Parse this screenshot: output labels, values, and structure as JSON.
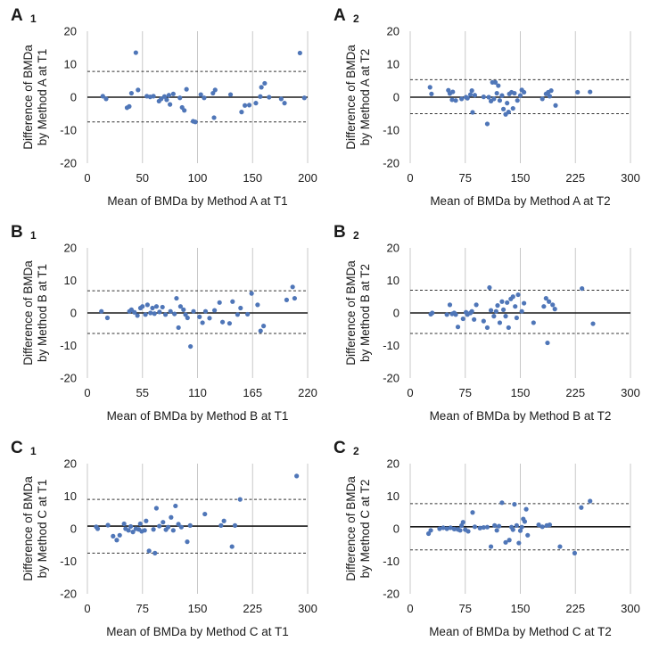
{
  "colors": {
    "point": "#4f76b8",
    "grid": "#c8c8c8",
    "axis": "#1a1a1a"
  },
  "chart_data": [
    {
      "id": "A1",
      "type": "scatter",
      "panel_letter": "A",
      "panel_number": "1",
      "xlabel": "Mean of BMDa by Method A at T1",
      "ylabel_line1": "Difference of BMDa",
      "ylabel_line2": "by Method A at T1",
      "xlim": [
        0,
        200
      ],
      "xticks": [
        0,
        50,
        100,
        150,
        200
      ],
      "ylim": [
        -20,
        20
      ],
      "yticks": [
        -20,
        -10,
        0,
        10,
        20
      ],
      "mean_diff": 0,
      "loa_upper": 7.8,
      "loa_lower": -7.5,
      "points": [
        [
          14,
          0.3
        ],
        [
          17,
          -0.5
        ],
        [
          36,
          -3.2
        ],
        [
          38,
          -2.8
        ],
        [
          40,
          1.2
        ],
        [
          44,
          13.5
        ],
        [
          46,
          2.2
        ],
        [
          54,
          0.3
        ],
        [
          57,
          0.1
        ],
        [
          60,
          0.3
        ],
        [
          65,
          -1.2
        ],
        [
          67,
          -0.5
        ],
        [
          70,
          0.2
        ],
        [
          72,
          -0.8
        ],
        [
          74,
          0.6
        ],
        [
          75,
          -2.2
        ],
        [
          78,
          1
        ],
        [
          84,
          -0.2
        ],
        [
          86,
          -3.1
        ],
        [
          88,
          -4
        ],
        [
          90,
          2.4
        ],
        [
          96,
          -7.3
        ],
        [
          98,
          -7.5
        ],
        [
          103,
          0.8
        ],
        [
          106,
          -0.2
        ],
        [
          114,
          1.2
        ],
        [
          115,
          -6.2
        ],
        [
          116,
          2.2
        ],
        [
          130,
          0.8
        ],
        [
          140,
          -4.5
        ],
        [
          143,
          -2.5
        ],
        [
          147,
          -2.4
        ],
        [
          153,
          -1.8
        ],
        [
          157,
          0.2
        ],
        [
          158,
          3
        ],
        [
          161,
          4.2
        ],
        [
          165,
          0
        ],
        [
          176,
          -0.5
        ],
        [
          179,
          -1.8
        ],
        [
          193,
          13.4
        ],
        [
          197,
          -0.2
        ]
      ]
    },
    {
      "id": "A2",
      "type": "scatter",
      "panel_letter": "A",
      "panel_number": "2",
      "xlabel": "Mean of BMDa by Method A at T2",
      "ylabel_line1": "Difference of BMDa",
      "ylabel_line2": "by Method A at T2",
      "xlim": [
        0,
        300
      ],
      "xticks": [
        0,
        75,
        150,
        225,
        300
      ],
      "ylim": [
        -20,
        20
      ],
      "yticks": [
        -20,
        -10,
        0,
        10,
        20
      ],
      "mean_diff": 0,
      "loa_upper": 5.3,
      "loa_lower": -5,
      "points": [
        [
          27,
          3
        ],
        [
          29,
          1
        ],
        [
          52,
          2.1
        ],
        [
          54,
          1.1
        ],
        [
          57,
          -0.8
        ],
        [
          58,
          1.6
        ],
        [
          62,
          -1
        ],
        [
          70,
          -0.5
        ],
        [
          76,
          0
        ],
        [
          78,
          -0.3
        ],
        [
          82,
          0.8
        ],
        [
          84,
          2
        ],
        [
          85,
          -4.6
        ],
        [
          88,
          0.6
        ],
        [
          100,
          0.1
        ],
        [
          105,
          -8.1
        ],
        [
          107,
          0
        ],
        [
          110,
          -1.2
        ],
        [
          112,
          4.5
        ],
        [
          114,
          -0.5
        ],
        [
          116,
          4.5
        ],
        [
          118,
          1.2
        ],
        [
          120,
          3.5
        ],
        [
          122,
          -1
        ],
        [
          125,
          0.5
        ],
        [
          127,
          -3.6
        ],
        [
          130,
          -5.2
        ],
        [
          132,
          -1.8
        ],
        [
          134,
          -4.5
        ],
        [
          135,
          1
        ],
        [
          138,
          1.5
        ],
        [
          140,
          -3.4
        ],
        [
          142,
          1.2
        ],
        [
          146,
          -1
        ],
        [
          150,
          0.5
        ],
        [
          152,
          2.2
        ],
        [
          155,
          1.5
        ],
        [
          180,
          -0.5
        ],
        [
          185,
          1
        ],
        [
          188,
          1.5
        ],
        [
          190,
          0.3
        ],
        [
          192,
          2
        ],
        [
          198,
          -2.5
        ],
        [
          228,
          1.5
        ],
        [
          245,
          1.6
        ]
      ]
    },
    {
      "id": "B1",
      "type": "scatter",
      "panel_letter": "B",
      "panel_number": "1",
      "xlabel": "Mean of BMDa by Method B at T1",
      "ylabel_line1": "Difference of BMDa",
      "ylabel_line2": "by Method B at T1",
      "xlim": [
        0,
        220
      ],
      "xticks": [
        0,
        55,
        110,
        165,
        220
      ],
      "ylim": [
        -20,
        20
      ],
      "yticks": [
        -20,
        -10,
        0,
        10,
        20
      ],
      "mean_diff": 0,
      "loa_upper": 6.8,
      "loa_lower": -6.3,
      "points": [
        [
          14,
          0.5
        ],
        [
          20,
          -1.5
        ],
        [
          42,
          0.5
        ],
        [
          44,
          1
        ],
        [
          47,
          0.2
        ],
        [
          50,
          -0.8
        ],
        [
          53,
          1.5
        ],
        [
          55,
          2
        ],
        [
          58,
          -0.5
        ],
        [
          60,
          2.5
        ],
        [
          63,
          0
        ],
        [
          65,
          1.5
        ],
        [
          67,
          -0.2
        ],
        [
          69,
          2
        ],
        [
          72,
          0.3
        ],
        [
          75,
          1.8
        ],
        [
          78,
          -0.5
        ],
        [
          83,
          0.5
        ],
        [
          87,
          -0.3
        ],
        [
          89,
          4.5
        ],
        [
          91,
          -4.5
        ],
        [
          93,
          2
        ],
        [
          96,
          1
        ],
        [
          98,
          -0.5
        ],
        [
          100,
          -1.5
        ],
        [
          103,
          -10.3
        ],
        [
          106,
          0.5
        ],
        [
          112,
          -1.2
        ],
        [
          115,
          -3
        ],
        [
          118,
          0.5
        ],
        [
          122,
          -1.6
        ],
        [
          127,
          0.8
        ],
        [
          132,
          3.2
        ],
        [
          135,
          -2.8
        ],
        [
          142,
          -3.2
        ],
        [
          145,
          3.5
        ],
        [
          150,
          -0.5
        ],
        [
          153,
          1.5
        ],
        [
          160,
          -0.4
        ],
        [
          164,
          6
        ],
        [
          170,
          2.5
        ],
        [
          173,
          -5.5
        ],
        [
          176,
          -4
        ],
        [
          199,
          4
        ],
        [
          205,
          8
        ],
        [
          207,
          4.5
        ]
      ]
    },
    {
      "id": "B2",
      "type": "scatter",
      "panel_letter": "B",
      "panel_number": "2",
      "xlabel": "Mean of BMDa by Method B at T2",
      "ylabel_line1": "Difference of BMDa",
      "ylabel_line2": "by Method B at T2",
      "xlim": [
        0,
        300
      ],
      "xticks": [
        0,
        75,
        150,
        225,
        300
      ],
      "ylim": [
        -20,
        20
      ],
      "yticks": [
        -20,
        -10,
        0,
        10,
        20
      ],
      "mean_diff": 0,
      "loa_upper": 7,
      "loa_lower": -6.3,
      "points": [
        [
          28,
          -0.4
        ],
        [
          30,
          0
        ],
        [
          50,
          -0.5
        ],
        [
          54,
          2.5
        ],
        [
          57,
          -0.3
        ],
        [
          60,
          0
        ],
        [
          62,
          -0.5
        ],
        [
          65,
          -4.3
        ],
        [
          72,
          -1.8
        ],
        [
          76,
          0.2
        ],
        [
          78,
          -0.5
        ],
        [
          82,
          0
        ],
        [
          84,
          0.5
        ],
        [
          87,
          -2
        ],
        [
          90,
          2.5
        ],
        [
          100,
          -2.5
        ],
        [
          105,
          -4.5
        ],
        [
          108,
          7.8
        ],
        [
          110,
          0.8
        ],
        [
          114,
          -1
        ],
        [
          117,
          0.5
        ],
        [
          119,
          2.3
        ],
        [
          122,
          -3
        ],
        [
          125,
          3.5
        ],
        [
          127,
          1
        ],
        [
          130,
          -1
        ],
        [
          132,
          3.2
        ],
        [
          134,
          -4.5
        ],
        [
          137,
          4.3
        ],
        [
          140,
          5
        ],
        [
          143,
          2
        ],
        [
          145,
          -1.5
        ],
        [
          147,
          5.6
        ],
        [
          152,
          0.5
        ],
        [
          155,
          3
        ],
        [
          168,
          -3
        ],
        [
          182,
          2
        ],
        [
          185,
          4.5
        ],
        [
          187,
          -9.2
        ],
        [
          189,
          3.5
        ],
        [
          194,
          2.5
        ],
        [
          197,
          1.2
        ],
        [
          234,
          7.5
        ],
        [
          249,
          -3.3
        ]
      ]
    },
    {
      "id": "C1",
      "type": "scatter",
      "panel_letter": "C",
      "panel_number": "1",
      "xlabel": "Mean of BMDa by Method C at T1",
      "ylabel_line1": "Difference of BMDa",
      "ylabel_line2": "by Method C at T1",
      "xlim": [
        0,
        300
      ],
      "xticks": [
        0,
        75,
        150,
        225,
        300
      ],
      "ylim": [
        -20,
        20
      ],
      "yticks": [
        -20,
        -10,
        0,
        10,
        20
      ],
      "mean_diff": 0.8,
      "loa_upper": 9,
      "loa_lower": -7.5,
      "points": [
        [
          12,
          0.6
        ],
        [
          14,
          0
        ],
        [
          28,
          1.1
        ],
        [
          35,
          -2.3
        ],
        [
          40,
          -3.5
        ],
        [
          44,
          -2
        ],
        [
          50,
          1.5
        ],
        [
          52,
          0
        ],
        [
          56,
          -0.5
        ],
        [
          59,
          0.7
        ],
        [
          62,
          -1
        ],
        [
          66,
          0
        ],
        [
          70,
          -0.2
        ],
        [
          72,
          1.5
        ],
        [
          74,
          -0.8
        ],
        [
          78,
          -0.5
        ],
        [
          80,
          2.4
        ],
        [
          84,
          -6.8
        ],
        [
          90,
          -0.2
        ],
        [
          92,
          -7.5
        ],
        [
          94,
          6.3
        ],
        [
          98,
          0.8
        ],
        [
          103,
          2
        ],
        [
          107,
          -0.3
        ],
        [
          110,
          0.5
        ],
        [
          114,
          3.5
        ],
        [
          117,
          -0.5
        ],
        [
          120,
          7
        ],
        [
          124,
          1.4
        ],
        [
          128,
          0.5
        ],
        [
          136,
          -4
        ],
        [
          140,
          1
        ],
        [
          160,
          4.5
        ],
        [
          182,
          1
        ],
        [
          186,
          2.4
        ],
        [
          197,
          -5.5
        ],
        [
          201,
          1
        ],
        [
          208,
          9
        ],
        [
          285,
          16.2
        ]
      ]
    },
    {
      "id": "C2",
      "type": "scatter",
      "panel_letter": "C",
      "panel_number": "2",
      "xlabel": "Mean of BMDa by Method C at T2",
      "ylabel_line1": "Difference of BMDa",
      "ylabel_line2": "by Method C at T2",
      "xlim": [
        0,
        300
      ],
      "xticks": [
        0,
        75,
        150,
        225,
        300
      ],
      "ylim": [
        -20,
        20
      ],
      "yticks": [
        -20,
        -10,
        0,
        10,
        20
      ],
      "mean_diff": 0.6,
      "loa_upper": 7.7,
      "loa_lower": -6.5,
      "points": [
        [
          25,
          -1.5
        ],
        [
          28,
          -0.5
        ],
        [
          40,
          0
        ],
        [
          45,
          0.3
        ],
        [
          50,
          0
        ],
        [
          55,
          0.3
        ],
        [
          60,
          -0.1
        ],
        [
          65,
          -0.2
        ],
        [
          68,
          -0.5
        ],
        [
          70,
          1
        ],
        [
          72,
          2
        ],
        [
          75,
          -0.3
        ],
        [
          79,
          -0.8
        ],
        [
          85,
          5
        ],
        [
          88,
          0.6
        ],
        [
          95,
          0.2
        ],
        [
          100,
          0.4
        ],
        [
          105,
          0.5
        ],
        [
          110,
          -5.5
        ],
        [
          115,
          1
        ],
        [
          118,
          -0.5
        ],
        [
          121,
          0.8
        ],
        [
          125,
          8
        ],
        [
          130,
          -4.2
        ],
        [
          135,
          -3.5
        ],
        [
          138,
          0.5
        ],
        [
          140,
          -0.3
        ],
        [
          142,
          7.5
        ],
        [
          145,
          1
        ],
        [
          148,
          -4.4
        ],
        [
          150,
          -0.6
        ],
        [
          152,
          0.5
        ],
        [
          154,
          3
        ],
        [
          156,
          2.2
        ],
        [
          158,
          6
        ],
        [
          160,
          -2
        ],
        [
          175,
          1.2
        ],
        [
          180,
          0.6
        ],
        [
          186,
          1
        ],
        [
          190,
          1.2
        ],
        [
          204,
          -5.5
        ],
        [
          224,
          -7.5
        ],
        [
          233,
          6.5
        ],
        [
          245,
          8.5
        ]
      ]
    }
  ]
}
